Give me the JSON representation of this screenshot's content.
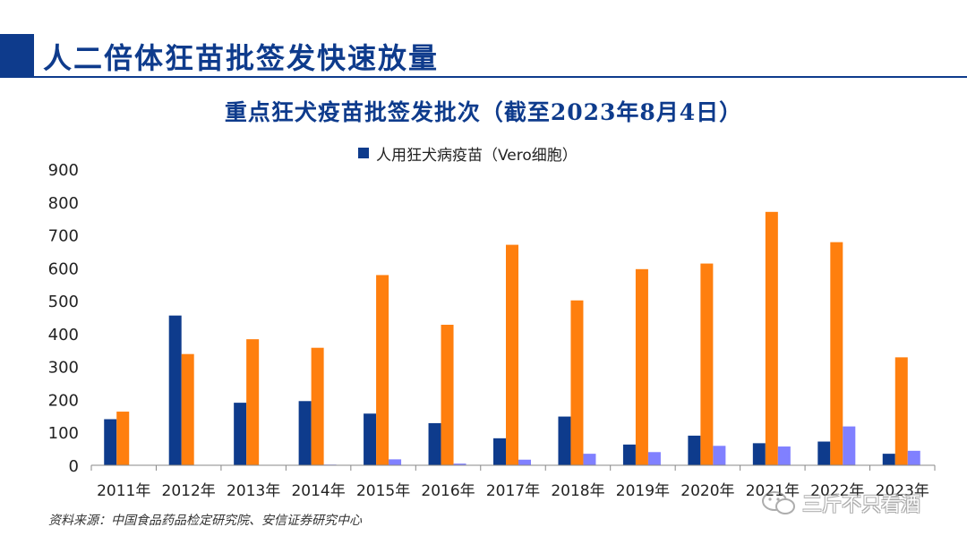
{
  "page": {
    "title": "人二倍体狂苗批签发快速放量",
    "source": "资料来源：中国食品药品检定研究院、安信证券研究中心",
    "watermark": "三斤不只看酒"
  },
  "colors": {
    "title": "#0e3b8c",
    "series": [
      "#0e3b8c",
      "#ff7f0e",
      "#8080ff"
    ]
  },
  "icons": {
    "watermark": "wechat-icon"
  },
  "chart_data": {
    "type": "bar",
    "title": "重点狂犬疫苗批签发批次（截至2023年8月4日）",
    "categories": [
      "2011年",
      "2012年",
      "2013年",
      "2014年",
      "2015年",
      "2016年",
      "2017年",
      "2018年",
      "2019年",
      "2020年",
      "2021年",
      "2022年",
      "2023年"
    ],
    "series": [
      {
        "name": "人用狂犬病疫苗（Vero细胞）",
        "values": [
          140,
          455,
          190,
          195,
          157,
          128,
          82,
          148,
          63,
          90,
          67,
          72,
          35
        ]
      },
      {
        "values": [
          163,
          338,
          383,
          357,
          578,
          427,
          670,
          501,
          596,
          613,
          770,
          678,
          328
        ]
      },
      {
        "values": [
          0,
          0,
          0,
          2,
          18,
          5,
          17,
          35,
          40,
          59,
          57,
          118,
          44
        ]
      }
    ],
    "ylim": [
      0,
      900
    ],
    "yticks": [
      0,
      100,
      200,
      300,
      400,
      500,
      600,
      700,
      800,
      900
    ],
    "grid": false,
    "legend": "top"
  }
}
